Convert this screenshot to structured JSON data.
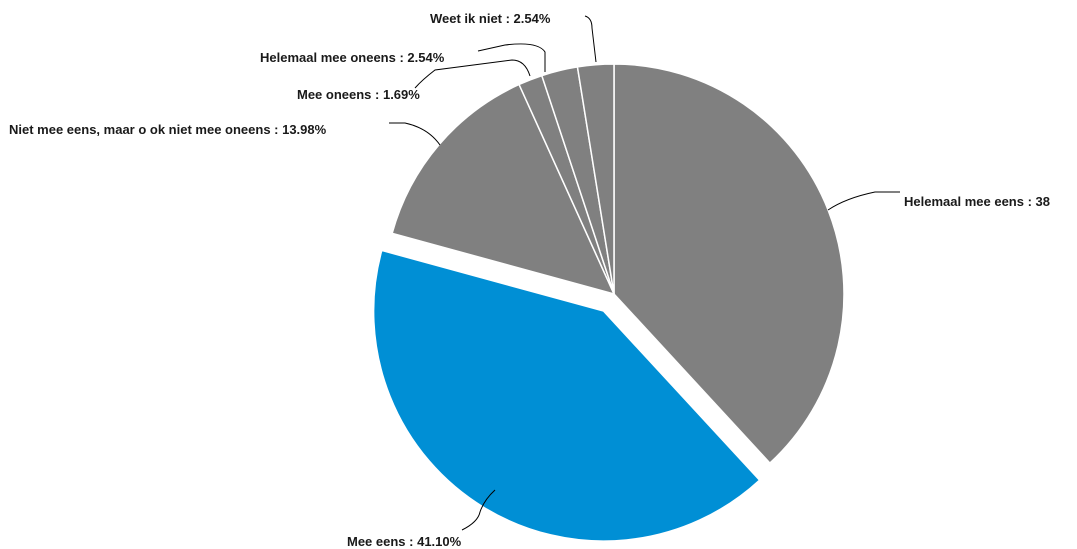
{
  "chart_data": {
    "type": "pie",
    "slices": [
      {
        "label": "Helemaal mee eens",
        "value": 38.14,
        "display": "Helemaal mee eens : 38",
        "color": "#808080",
        "exploded": false
      },
      {
        "label": "Mee eens",
        "value": 41.1,
        "display": "Mee eens : 41.10%",
        "color": "#008fd5",
        "exploded": true
      },
      {
        "label": "Niet mee eens, maar o ok niet mee oneens",
        "value": 13.98,
        "display": "Niet mee eens, maar o ok niet mee oneens : 13.98%",
        "color": "#808080",
        "exploded": false
      },
      {
        "label": "Mee oneens",
        "value": 1.69,
        "display": "Mee oneens : 1.69%",
        "color": "#808080",
        "exploded": false
      },
      {
        "label": "Helemaal mee oneens",
        "value": 2.54,
        "display": "Helemaal mee oneens : 2.54%",
        "color": "#808080",
        "exploded": false
      },
      {
        "label": "Weet ik niet",
        "value": 2.54,
        "display": "Weet ik niet : 2.54%",
        "color": "#808080",
        "exploded": false
      }
    ],
    "start_angle": "12 o'clock",
    "direction": "clockwise",
    "legend": "none"
  }
}
